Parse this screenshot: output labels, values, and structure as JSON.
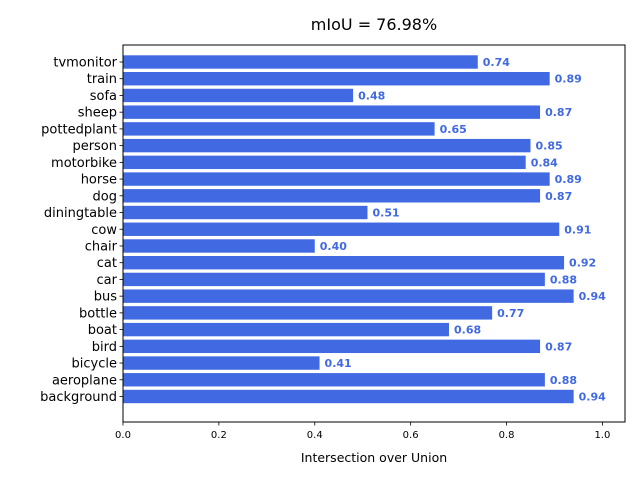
{
  "chart_data": {
    "type": "bar",
    "orientation": "horizontal",
    "title": "mIoU = 76.98%",
    "xlabel": "Intersection over Union",
    "ylabel": "",
    "xlim": [
      0,
      1.05
    ],
    "xticks": [
      "0.0",
      "0.2",
      "0.4",
      "0.6",
      "0.8",
      "1.0"
    ],
    "grid": false,
    "bar_color": "#4169e1",
    "label_color": "#4169e1",
    "categories": [
      "background",
      "aeroplane",
      "bicycle",
      "bird",
      "boat",
      "bottle",
      "bus",
      "car",
      "cat",
      "chair",
      "cow",
      "diningtable",
      "dog",
      "horse",
      "motorbike",
      "person",
      "pottedplant",
      "sheep",
      "sofa",
      "train",
      "tvmonitor"
    ],
    "values": [
      0.94,
      0.88,
      0.41,
      0.87,
      0.68,
      0.77,
      0.94,
      0.88,
      0.92,
      0.4,
      0.91,
      0.51,
      0.87,
      0.89,
      0.84,
      0.85,
      0.65,
      0.87,
      0.48,
      0.89,
      0.74
    ],
    "value_labels": [
      "0.94",
      "0.88",
      "0.41",
      "0.87",
      "0.68",
      "0.77",
      "0.94",
      "0.88",
      "0.92",
      "0.40",
      "0.91",
      "0.51",
      "0.87",
      "0.89",
      "0.84",
      "0.85",
      "0.65",
      "0.87",
      "0.48",
      "0.89",
      "0.74"
    ]
  }
}
